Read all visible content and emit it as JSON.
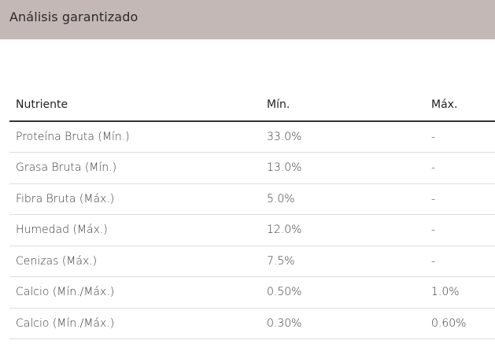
{
  "section": {
    "title": "Análisis garantizado"
  },
  "table": {
    "headers": [
      "Nutriente",
      "Mín.",
      "Máx."
    ],
    "rows": [
      [
        "Proteína Bruta (Mín.)",
        "33.0%",
        "-"
      ],
      [
        "Grasa Bruta (Mín.)",
        "13.0%",
        "-"
      ],
      [
        "Fibra Bruta (Máx.)",
        "5.0%",
        "-"
      ],
      [
        "Humedad (Máx.)",
        "12.0%",
        "-"
      ],
      [
        "Cenizas (Máx.)",
        "7.5%",
        "-"
      ],
      [
        "Calcio (Mín./Máx.)",
        "0.50%",
        "1.0%"
      ],
      [
        "Calcio (Mín./Máx.)",
        "0.30%",
        "0.60%"
      ]
    ]
  },
  "colors": {
    "header_bar": "#c4b8b6",
    "header_rule": "#333333",
    "row_divider": "#dedede"
  }
}
